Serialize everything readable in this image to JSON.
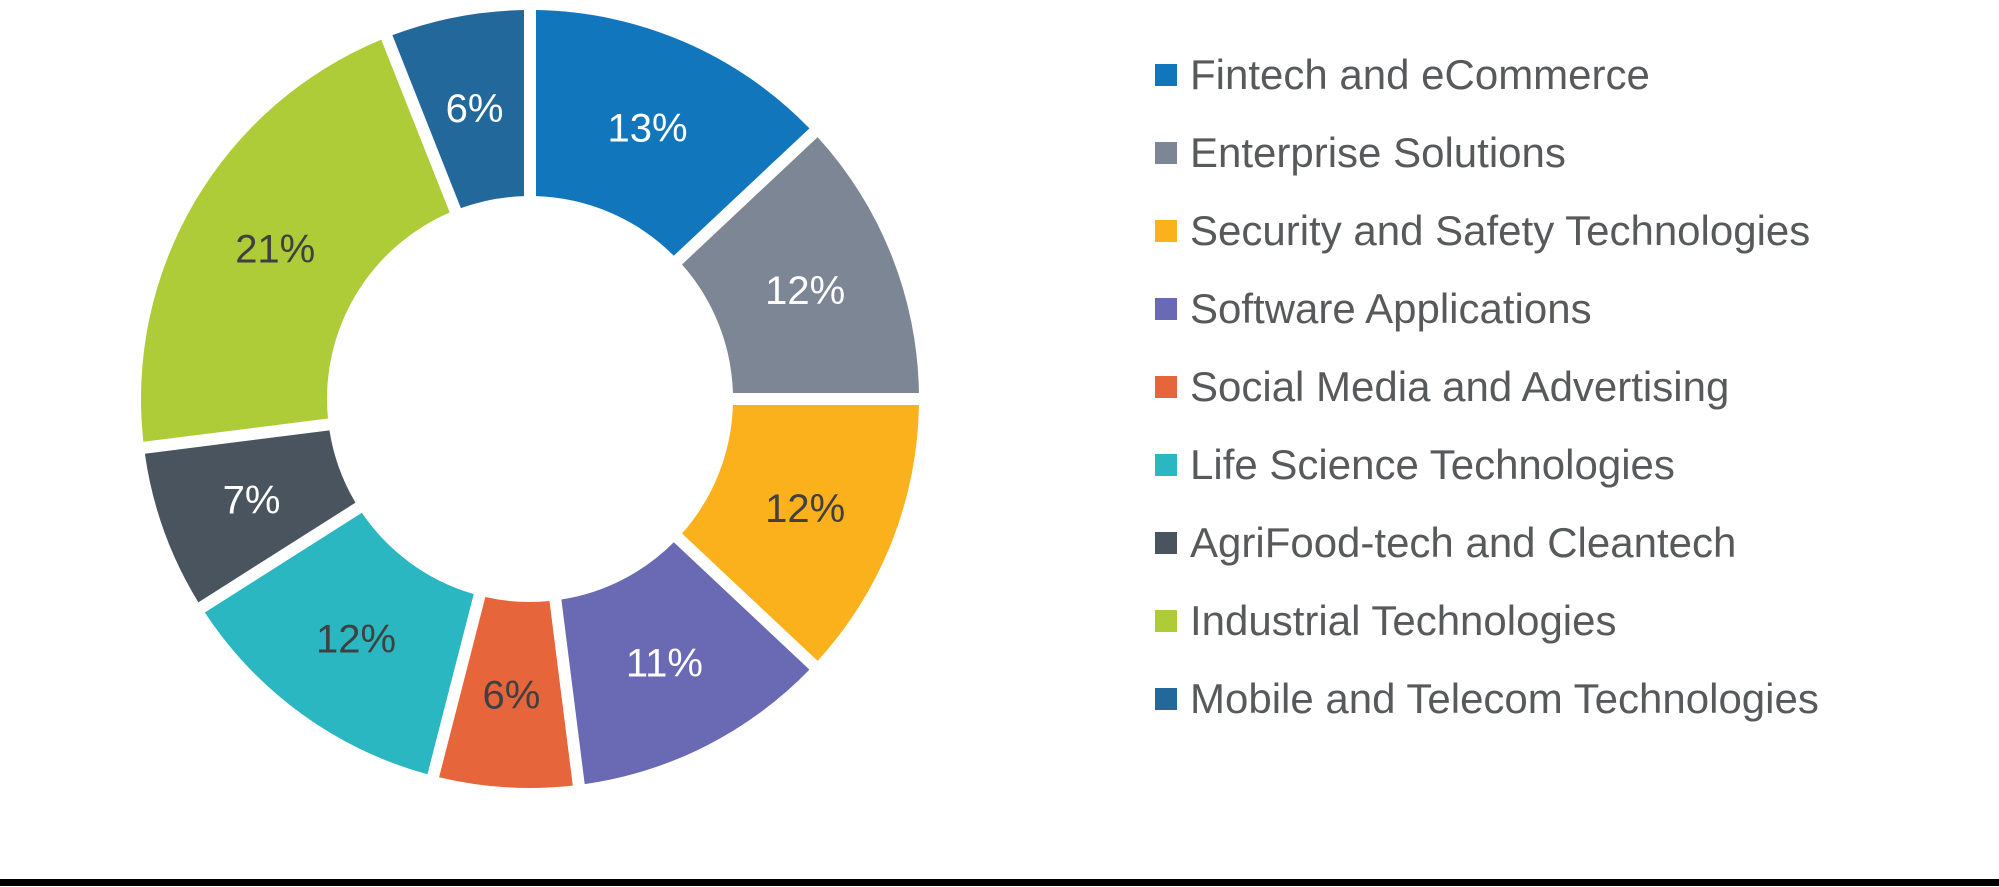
{
  "page": {
    "background": "#FFFFFF",
    "bottom_rule_color": "#000000"
  },
  "chart_data": {
    "type": "pie",
    "subtype": "donut",
    "title": "",
    "unit": "%",
    "categories": [
      "Fintech and eCommerce",
      "Enterprise Solutions",
      "Security and Safety Technologies",
      "Software Applications",
      "Social Media and Advertising",
      "Life Science Technologies",
      "AgriFood-tech and Cleantech",
      "Industrial Technologies",
      "Mobile and Telecom Technologies"
    ],
    "values": [
      13,
      12,
      12,
      11,
      6,
      12,
      7,
      21,
      6
    ],
    "labels": [
      "13%",
      "12%",
      "12%",
      "11%",
      "6%",
      "12%",
      "7%",
      "21%",
      "6%"
    ],
    "colors": [
      "#1276BD",
      "#7D8694",
      "#FBB11C",
      "#6A69B4",
      "#E7653B",
      "#2BB7C2",
      "#49545F",
      "#AECB38",
      "#23689A"
    ],
    "label_colors": [
      "#FFFFFF",
      "#FFFFFF",
      "#404040",
      "#FFFFFF",
      "#404040",
      "#404040",
      "#FFFFFF",
      "#404040",
      "#FFFFFF"
    ],
    "start_angle_deg": 0,
    "direction": "clockwise",
    "legend_position": "right",
    "legend_text_color": "#58595B",
    "grid": false
  }
}
